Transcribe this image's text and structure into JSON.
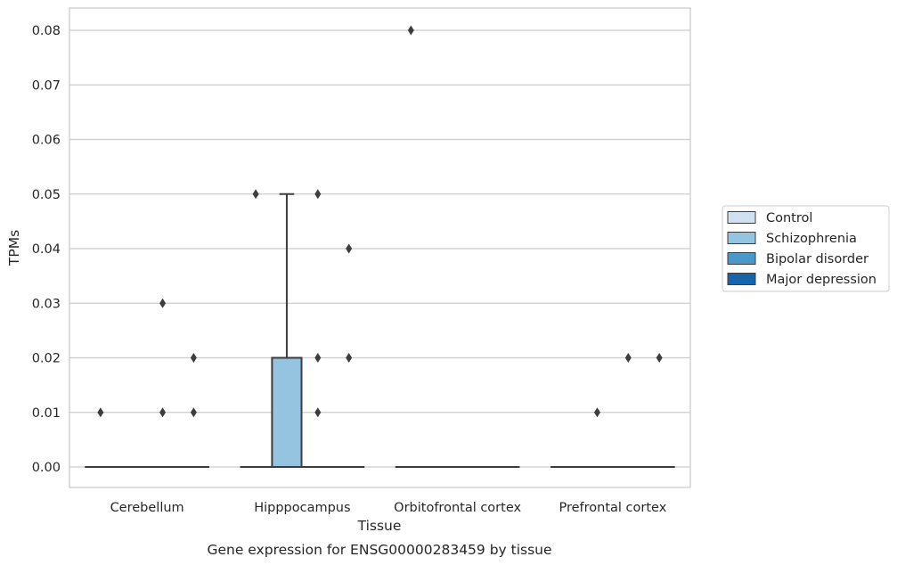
{
  "chart_data": {
    "type": "box",
    "xlabel": "Tissue",
    "ylabel": "TPMs",
    "caption": "Gene expression for ENSG00000283459 by tissue",
    "ylim": [
      -0.004,
      0.084
    ],
    "yticks": [
      "0.00",
      "0.01",
      "0.02",
      "0.03",
      "0.04",
      "0.05",
      "0.06",
      "0.07",
      "0.08"
    ],
    "grid": "horizontal",
    "legend_position": "right",
    "categories": [
      "Cerebellum",
      "Hipppocampus",
      "Orbitofrontal cortex",
      "Prefrontal cortex"
    ],
    "hue_order": [
      "Control",
      "Schizophrenia",
      "Bipolar disorder",
      "Major depression"
    ],
    "colors": {
      "Control": "#d0e1f2",
      "Schizophrenia": "#94c4df",
      "Bipolar disorder": "#4a98c9",
      "Major depression": "#1764ab"
    },
    "boxes": [
      {
        "category": "Cerebellum",
        "group": "Control",
        "q1": 0,
        "median": 0,
        "q3": 0,
        "whisker_low": 0,
        "whisker_high": 0,
        "outliers": [
          0.01
        ]
      },
      {
        "category": "Cerebellum",
        "group": "Schizophrenia",
        "q1": 0,
        "median": 0,
        "q3": 0,
        "whisker_low": 0,
        "whisker_high": 0,
        "outliers": []
      },
      {
        "category": "Cerebellum",
        "group": "Bipolar disorder",
        "q1": 0,
        "median": 0,
        "q3": 0,
        "whisker_low": 0,
        "whisker_high": 0,
        "outliers": [
          0.01,
          0.03
        ]
      },
      {
        "category": "Cerebellum",
        "group": "Major depression",
        "q1": 0,
        "median": 0,
        "q3": 0,
        "whisker_low": 0,
        "whisker_high": 0,
        "outliers": [
          0.01,
          0.02
        ]
      },
      {
        "category": "Hipppocampus",
        "group": "Control",
        "q1": 0,
        "median": 0,
        "q3": 0,
        "whisker_low": 0,
        "whisker_high": 0,
        "outliers": [
          0.05
        ]
      },
      {
        "category": "Hipppocampus",
        "group": "Schizophrenia",
        "q1": 0,
        "median": 0,
        "q3": 0.02,
        "whisker_low": 0,
        "whisker_high": 0.05,
        "outliers": []
      },
      {
        "category": "Hipppocampus",
        "group": "Bipolar disorder",
        "q1": 0,
        "median": 0,
        "q3": 0,
        "whisker_low": 0,
        "whisker_high": 0,
        "outliers": [
          0.01,
          0.02,
          0.05
        ]
      },
      {
        "category": "Hipppocampus",
        "group": "Major depression",
        "q1": 0,
        "median": 0,
        "q3": 0,
        "whisker_low": 0,
        "whisker_high": 0,
        "outliers": [
          0.02,
          0.04
        ]
      },
      {
        "category": "Orbitofrontal cortex",
        "group": "Control",
        "q1": 0,
        "median": 0,
        "q3": 0,
        "whisker_low": 0,
        "whisker_high": 0,
        "outliers": [
          0.08
        ]
      },
      {
        "category": "Orbitofrontal cortex",
        "group": "Schizophrenia",
        "q1": 0,
        "median": 0,
        "q3": 0,
        "whisker_low": 0,
        "whisker_high": 0,
        "outliers": []
      },
      {
        "category": "Orbitofrontal cortex",
        "group": "Bipolar disorder",
        "q1": 0,
        "median": 0,
        "q3": 0,
        "whisker_low": 0,
        "whisker_high": 0,
        "outliers": []
      },
      {
        "category": "Orbitofrontal cortex",
        "group": "Major depression",
        "q1": 0,
        "median": 0,
        "q3": 0,
        "whisker_low": 0,
        "whisker_high": 0,
        "outliers": []
      },
      {
        "category": "Prefrontal cortex",
        "group": "Control",
        "q1": 0,
        "median": 0,
        "q3": 0,
        "whisker_low": 0,
        "whisker_high": 0,
        "outliers": []
      },
      {
        "category": "Prefrontal cortex",
        "group": "Schizophrenia",
        "q1": 0,
        "median": 0,
        "q3": 0,
        "whisker_low": 0,
        "whisker_high": 0,
        "outliers": [
          0.01
        ]
      },
      {
        "category": "Prefrontal cortex",
        "group": "Bipolar disorder",
        "q1": 0,
        "median": 0,
        "q3": 0,
        "whisker_low": 0,
        "whisker_high": 0,
        "outliers": [
          0.02
        ]
      },
      {
        "category": "Prefrontal cortex",
        "group": "Major depression",
        "q1": 0,
        "median": 0,
        "q3": 0,
        "whisker_low": 0,
        "whisker_high": 0,
        "outliers": [
          0.02
        ]
      }
    ]
  }
}
